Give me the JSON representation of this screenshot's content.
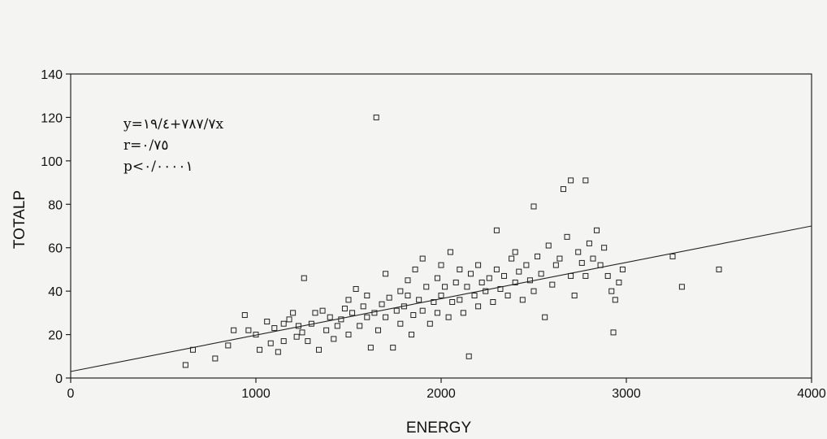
{
  "chart_data": {
    "type": "scatter",
    "xlabel": "ENERGY",
    "ylabel": "TOTALP",
    "xlim": [
      0,
      4000
    ],
    "ylim": [
      0,
      140
    ],
    "xticks": [
      "0",
      "1000",
      "2000",
      "3000",
      "4000"
    ],
    "yticks": [
      "0",
      "20",
      "40",
      "60",
      "80",
      "100",
      "120",
      "140"
    ],
    "grid": false,
    "annotations": [
      "y=٧٨٧/٧+١٩/٤x",
      "r=٠/٧٥",
      "p<٠/٠٠٠٠١"
    ],
    "regression": {
      "x": [
        0,
        4000
      ],
      "y": [
        3,
        70
      ]
    },
    "series": [
      {
        "marker": "hollow-square",
        "points": [
          [
            620,
            6
          ],
          [
            660,
            13
          ],
          [
            780,
            9
          ],
          [
            850,
            15
          ],
          [
            880,
            22
          ],
          [
            940,
            29
          ],
          [
            960,
            22
          ],
          [
            1000,
            20
          ],
          [
            1020,
            13
          ],
          [
            1060,
            26
          ],
          [
            1080,
            16
          ],
          [
            1100,
            23
          ],
          [
            1120,
            12
          ],
          [
            1150,
            17
          ],
          [
            1150,
            25
          ],
          [
            1180,
            27
          ],
          [
            1200,
            30
          ],
          [
            1220,
            19
          ],
          [
            1230,
            24
          ],
          [
            1250,
            21
          ],
          [
            1260,
            46
          ],
          [
            1280,
            17
          ],
          [
            1300,
            25
          ],
          [
            1320,
            30
          ],
          [
            1340,
            13
          ],
          [
            1360,
            31
          ],
          [
            1380,
            22
          ],
          [
            1400,
            28
          ],
          [
            1420,
            18
          ],
          [
            1440,
            24
          ],
          [
            1460,
            27
          ],
          [
            1480,
            32
          ],
          [
            1500,
            36
          ],
          [
            1500,
            20
          ],
          [
            1520,
            30
          ],
          [
            1540,
            41
          ],
          [
            1560,
            24
          ],
          [
            1580,
            33
          ],
          [
            1600,
            28
          ],
          [
            1600,
            38
          ],
          [
            1620,
            14
          ],
          [
            1640,
            30
          ],
          [
            1650,
            120
          ],
          [
            1660,
            22
          ],
          [
            1680,
            34
          ],
          [
            1700,
            48
          ],
          [
            1700,
            28
          ],
          [
            1720,
            37
          ],
          [
            1740,
            14
          ],
          [
            1760,
            31
          ],
          [
            1780,
            40
          ],
          [
            1780,
            25
          ],
          [
            1800,
            33
          ],
          [
            1820,
            38
          ],
          [
            1820,
            45
          ],
          [
            1840,
            20
          ],
          [
            1850,
            29
          ],
          [
            1860,
            50
          ],
          [
            1880,
            36
          ],
          [
            1900,
            55
          ],
          [
            1900,
            31
          ],
          [
            1920,
            42
          ],
          [
            1940,
            25
          ],
          [
            1960,
            35
          ],
          [
            1980,
            46
          ],
          [
            1980,
            30
          ],
          [
            2000,
            52
          ],
          [
            2000,
            38
          ],
          [
            2020,
            42
          ],
          [
            2040,
            28
          ],
          [
            2050,
            58
          ],
          [
            2060,
            35
          ],
          [
            2080,
            44
          ],
          [
            2100,
            36
          ],
          [
            2100,
            50
          ],
          [
            2120,
            30
          ],
          [
            2140,
            42
          ],
          [
            2150,
            10
          ],
          [
            2160,
            48
          ],
          [
            2180,
            38
          ],
          [
            2200,
            52
          ],
          [
            2200,
            33
          ],
          [
            2220,
            44
          ],
          [
            2240,
            40
          ],
          [
            2260,
            46
          ],
          [
            2280,
            35
          ],
          [
            2300,
            68
          ],
          [
            2300,
            50
          ],
          [
            2320,
            41
          ],
          [
            2340,
            47
          ],
          [
            2360,
            38
          ],
          [
            2380,
            55
          ],
          [
            2400,
            44
          ],
          [
            2400,
            58
          ],
          [
            2420,
            49
          ],
          [
            2440,
            36
          ],
          [
            2460,
            52
          ],
          [
            2480,
            45
          ],
          [
            2500,
            79
          ],
          [
            2500,
            40
          ],
          [
            2520,
            56
          ],
          [
            2540,
            48
          ],
          [
            2560,
            28
          ],
          [
            2580,
            61
          ],
          [
            2600,
            43
          ],
          [
            2620,
            52
          ],
          [
            2640,
            55
          ],
          [
            2660,
            87
          ],
          [
            2680,
            65
          ],
          [
            2700,
            91
          ],
          [
            2700,
            47
          ],
          [
            2720,
            38
          ],
          [
            2740,
            58
          ],
          [
            2760,
            53
          ],
          [
            2780,
            91
          ],
          [
            2780,
            47
          ],
          [
            2800,
            62
          ],
          [
            2820,
            55
          ],
          [
            2840,
            68
          ],
          [
            2860,
            52
          ],
          [
            2880,
            60
          ],
          [
            2900,
            47
          ],
          [
            2920,
            40
          ],
          [
            2930,
            21
          ],
          [
            2940,
            36
          ],
          [
            2960,
            44
          ],
          [
            2980,
            50
          ],
          [
            3250,
            56
          ],
          [
            3300,
            42
          ],
          [
            3500,
            50
          ]
        ]
      }
    ]
  }
}
